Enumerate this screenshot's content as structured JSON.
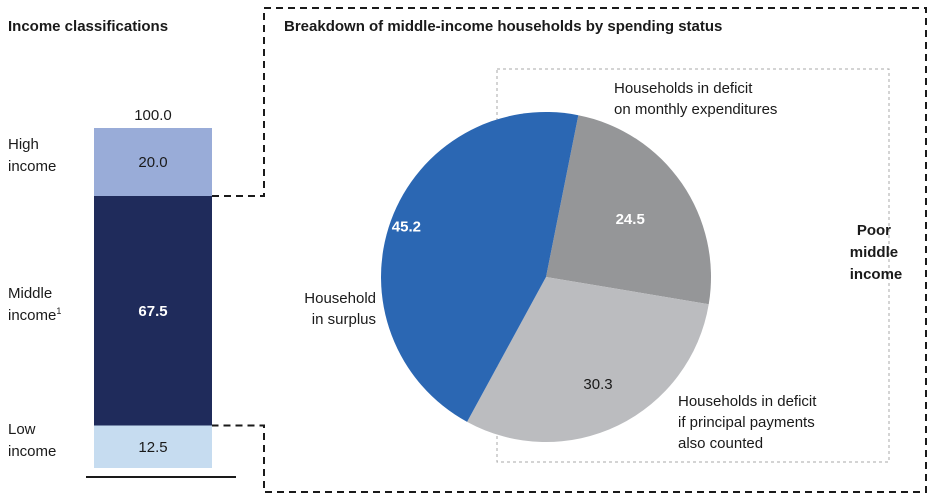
{
  "chart_data": [
    {
      "type": "bar",
      "title": "Income classifications",
      "stacked": true,
      "total_label": "100.0",
      "segments": [
        {
          "name": "Low income",
          "label_lines": [
            "Low",
            "income"
          ],
          "value": 12.5,
          "value_label": "12.5",
          "color": "#c6dcf0",
          "text_color": "#1a1a1a",
          "bold": false
        },
        {
          "name": "Middle income",
          "label_lines": [
            "Middle",
            "income"
          ],
          "label_sup": "1",
          "value": 67.5,
          "value_label": "67.5",
          "color": "#1f2b5b",
          "text_color": "#ffffff",
          "bold": true
        },
        {
          "name": "High income",
          "label_lines": [
            "High",
            "income"
          ],
          "value": 20.0,
          "value_label": "20.0",
          "color": "#99acd8",
          "text_color": "#1a1a1a",
          "bold": false
        }
      ]
    },
    {
      "type": "pie",
      "title": "Breakdown of middle-income households by spending status",
      "slices": [
        {
          "name": "Households in deficit on monthly expenditures",
          "label_lines": [
            "Households in deficit",
            "on monthly expenditures"
          ],
          "value": 24.5,
          "value_label": "24.5",
          "color": "#959698",
          "text_color": "#ffffff",
          "bold": true
        },
        {
          "name": "Households in deficit if principal payments also counted",
          "label_lines": [
            "Households in deficit",
            "if principal payments",
            "also counted"
          ],
          "value": 30.3,
          "value_label": "30.3",
          "color": "#bbbcbf",
          "text_color": "#1a1a1a",
          "bold": false
        },
        {
          "name": "Household in surplus",
          "label_lines": [
            "Household",
            "in surplus"
          ],
          "value": 45.2,
          "value_label": "45.2",
          "color": "#2b67b3",
          "text_color": "#ffffff",
          "bold": true
        }
      ],
      "group_label_lines": [
        "Poor",
        "middle",
        "income"
      ]
    }
  ],
  "colors": {
    "dashed_border": "#1a1a1a",
    "dotted_group_border": "#aaaaaa",
    "baseline": "#1a1a1a"
  }
}
